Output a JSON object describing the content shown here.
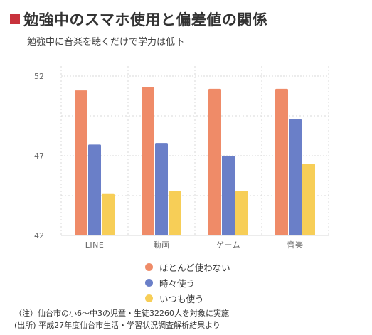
{
  "title": "勉強中のスマホ使用と偏差値の関係",
  "subtitle": "勉強中に音楽を聴くだけで学力は低下",
  "colors": {
    "accent": "#c8323c",
    "series": [
      "#ef8b68",
      "#6a7fc8",
      "#f7ce57"
    ],
    "grid": "#d9d9d9",
    "axis_text": "#666666"
  },
  "chart_data": {
    "type": "bar",
    "title": "",
    "xlabel": "",
    "ylabel": "",
    "categories": [
      "LINE",
      "動画",
      "ゲーム",
      "音楽"
    ],
    "series": [
      {
        "name": "ほとんど使わない",
        "values": [
          51.1,
          51.3,
          51.2,
          51.2
        ]
      },
      {
        "name": "時々使う",
        "values": [
          47.7,
          47.8,
          47.0,
          49.3
        ]
      },
      {
        "name": "いつも使う",
        "values": [
          44.6,
          44.8,
          44.8,
          46.5
        ]
      }
    ],
    "ylim": [
      42,
      52
    ],
    "yticks": [
      42,
      47,
      52
    ],
    "grid": true,
    "legend_position": "bottom"
  },
  "notes": [
    "（注）仙台市の小6〜中3の児童・生徒32260人を対象に実施",
    "(出所) 平成27年度仙台市生活・学習状況調査解析結果より"
  ]
}
